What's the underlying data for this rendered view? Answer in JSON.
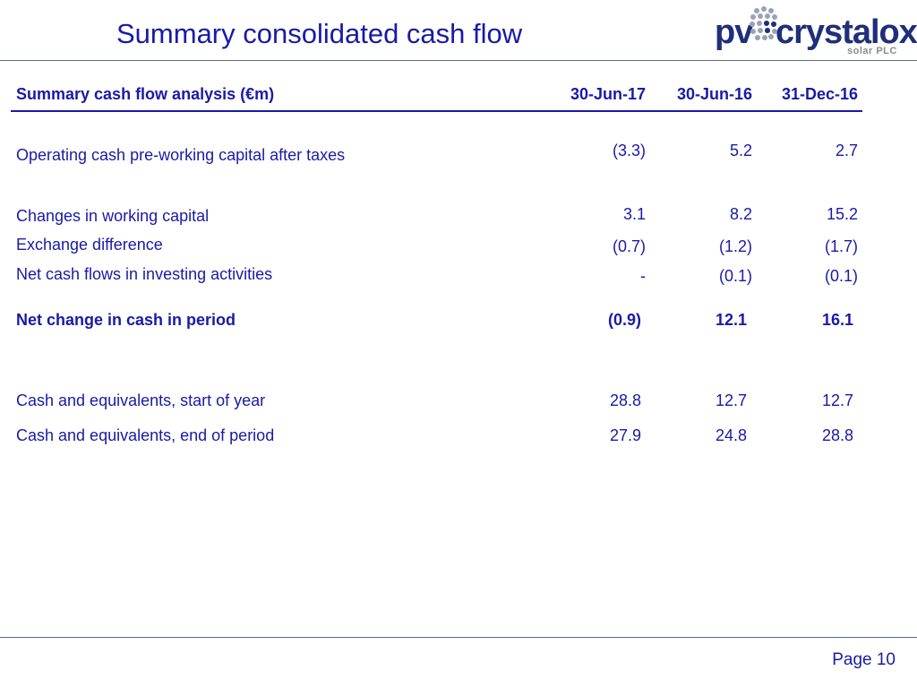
{
  "title": "Summary consolidated cash flow",
  "logo": {
    "brand_pv": "pv",
    "brand_word": "crystalox",
    "subtitle": "solar PLC"
  },
  "table": {
    "header": {
      "label": "Summary cash flow analysis (€m)",
      "cols": [
        "30-Jun-17",
        "30-Jun-16",
        "31-Dec-16"
      ]
    },
    "rows": [
      {
        "label": "Operating cash pre-working capital after taxes",
        "values": [
          "(3.3)",
          "5.2",
          "2.7"
        ]
      },
      {
        "label": "Changes in working capital",
        "values": [
          "3.1",
          "8.2",
          "15.2"
        ]
      },
      {
        "label": "Exchange difference",
        "values": [
          "(0.7)",
          "(1.2)",
          "(1.7)"
        ]
      },
      {
        "label": "Net cash flows in investing activities",
        "values": [
          "-",
          "(0.1)",
          "(0.1)"
        ]
      },
      {
        "label": "Net change in cash in period",
        "values": [
          "(0.9)",
          "12.1",
          "16.1"
        ]
      },
      {
        "label": "Cash and equivalents, start of year",
        "values": [
          "28.8",
          "12.7",
          "12.7"
        ]
      },
      {
        "label": "Cash and equivalents, end of period",
        "values": [
          "27.9",
          "24.8",
          "28.8"
        ]
      }
    ]
  },
  "footer": {
    "page": "Page 10"
  },
  "colors": {
    "text": "#1a1aa6",
    "brand": "#1f2f7a",
    "rule": "#5a6a8a"
  }
}
